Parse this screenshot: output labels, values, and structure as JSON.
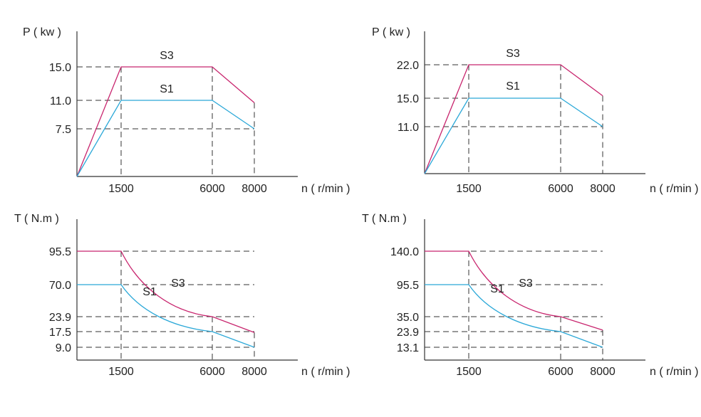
{
  "colors": {
    "axis": "#333333",
    "grid": "#333333",
    "S3": "#c8256e",
    "S1": "#2ba8d8"
  },
  "chart_data": [
    {
      "type": "line",
      "ylabel": "P ( kw )",
      "xlabel": "n ( r/min )",
      "x_ticks": [
        "1500",
        "6000",
        "8000"
      ],
      "y_ticks": [
        "15.0",
        "11.0",
        "7.5"
      ],
      "series": [
        {
          "name": "S3",
          "points": [
            [
              0,
              0
            ],
            [
              1500,
              15.0
            ],
            [
              6000,
              15.0
            ],
            [
              8000,
              10.7
            ]
          ]
        },
        {
          "name": "S1",
          "points": [
            [
              0,
              0
            ],
            [
              1500,
              11.0
            ],
            [
              6000,
              11.0
            ],
            [
              8000,
              7.5
            ]
          ]
        }
      ]
    },
    {
      "type": "line",
      "ylabel": "P ( kw )",
      "xlabel": "n ( r/min )",
      "x_ticks": [
        "1500",
        "6000",
        "8000"
      ],
      "y_ticks": [
        "22.0",
        "15.0",
        "11.0"
      ],
      "series": [
        {
          "name": "S3",
          "points": [
            [
              0,
              0
            ],
            [
              1500,
              22.0
            ],
            [
              6000,
              22.0
            ],
            [
              8000,
              15.5
            ]
          ]
        },
        {
          "name": "S1",
          "points": [
            [
              0,
              0
            ],
            [
              1500,
              15.0
            ],
            [
              6000,
              15.0
            ],
            [
              8000,
              11.0
            ]
          ]
        }
      ]
    },
    {
      "type": "line",
      "ylabel": "T ( N.m )",
      "xlabel": "n ( r/min )",
      "x_ticks": [
        "1500",
        "6000",
        "8000"
      ],
      "y_ticks": [
        "95.5",
        "70.0",
        "23.9",
        "17.5",
        "9.0"
      ],
      "series": [
        {
          "name": "S3",
          "points": [
            [
              0,
              95.5
            ],
            [
              1500,
              95.5
            ],
            [
              6000,
              23.9
            ],
            [
              8000,
              17.0
            ]
          ]
        },
        {
          "name": "S1",
          "points": [
            [
              0,
              70.0
            ],
            [
              1500,
              70.0
            ],
            [
              6000,
              17.5
            ],
            [
              8000,
              9.0
            ]
          ]
        }
      ]
    },
    {
      "type": "line",
      "ylabel": "T ( N.m )",
      "xlabel": "n ( r/min )",
      "x_ticks": [
        "1500",
        "6000",
        "8000"
      ],
      "y_ticks": [
        "140.0",
        "95.5",
        "35.0",
        "23.9",
        "13.1"
      ],
      "series": [
        {
          "name": "S3",
          "points": [
            [
              0,
              140.0
            ],
            [
              1500,
              140.0
            ],
            [
              6000,
              35.0
            ],
            [
              8000,
              25.0
            ]
          ]
        },
        {
          "name": "S1",
          "points": [
            [
              0,
              95.5
            ],
            [
              1500,
              95.5
            ],
            [
              6000,
              23.9
            ],
            [
              8000,
              13.1
            ]
          ]
        }
      ]
    }
  ]
}
